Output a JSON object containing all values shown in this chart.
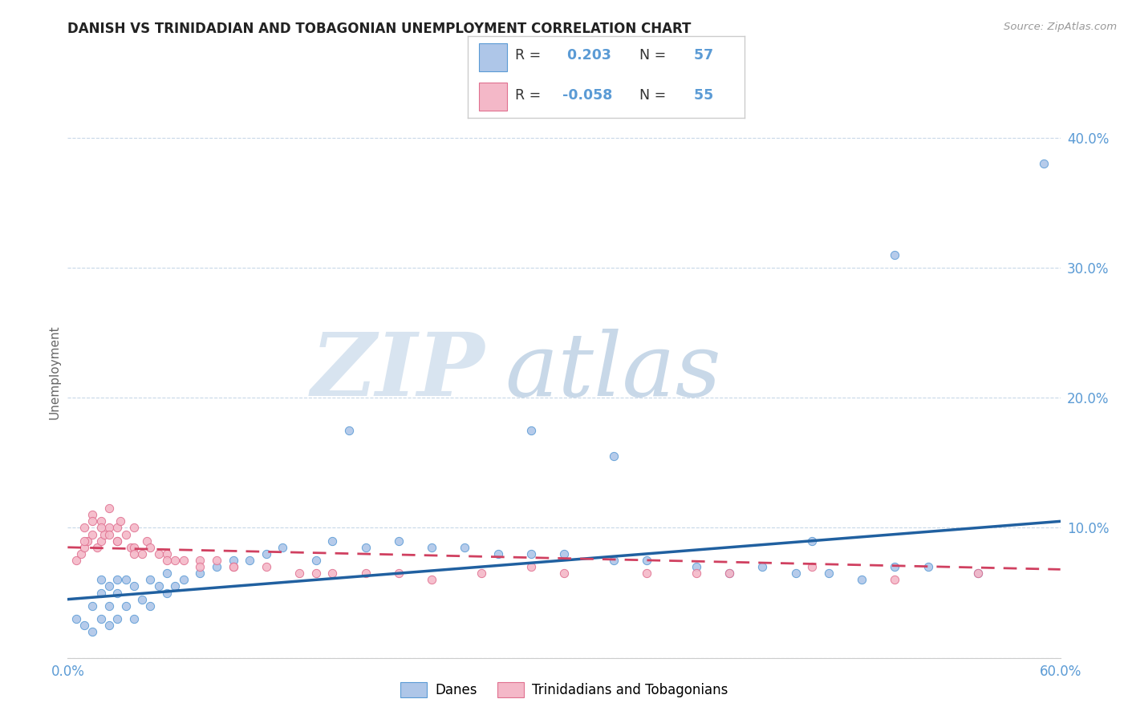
{
  "title": "DANISH VS TRINIDADIAN AND TOBAGONIAN UNEMPLOYMENT CORRELATION CHART",
  "source": "Source: ZipAtlas.com",
  "ylabel": "Unemployment",
  "yticks": [
    0.0,
    0.1,
    0.2,
    0.3,
    0.4
  ],
  "ytick_labels": [
    "",
    "10.0%",
    "20.0%",
    "30.0%",
    "40.0%"
  ],
  "xtick_labels": [
    "0.0%",
    "60.0%"
  ],
  "xlim": [
    0.0,
    0.6
  ],
  "ylim": [
    0.0,
    0.44
  ],
  "danes_R": 0.203,
  "danes_N": 57,
  "trini_R": -0.058,
  "trini_N": 55,
  "danes_color": "#aec6e8",
  "danes_edge_color": "#5b9bd5",
  "danes_line_color": "#2060a0",
  "trini_color": "#f4b8c8",
  "trini_edge_color": "#e07090",
  "trini_line_color": "#d04060",
  "legend_danes_label": "Danes",
  "legend_trini_label": "Trinidadians and Tobagonians",
  "watermark_zip": "ZIP",
  "watermark_atlas": "atlas",
  "background_color": "#ffffff",
  "grid_color": "#c8d8e8",
  "tick_color": "#5b9bd5",
  "legend_box_color": "#dddddd",
  "danes_scatter_x": [
    0.005,
    0.01,
    0.015,
    0.015,
    0.02,
    0.02,
    0.02,
    0.025,
    0.025,
    0.025,
    0.03,
    0.03,
    0.03,
    0.035,
    0.035,
    0.04,
    0.04,
    0.045,
    0.05,
    0.05,
    0.055,
    0.06,
    0.06,
    0.065,
    0.07,
    0.08,
    0.09,
    0.1,
    0.11,
    0.12,
    0.13,
    0.15,
    0.16,
    0.18,
    0.2,
    0.22,
    0.24,
    0.26,
    0.28,
    0.3,
    0.33,
    0.35,
    0.38,
    0.4,
    0.42,
    0.44,
    0.46,
    0.48,
    0.5,
    0.52,
    0.55,
    0.28,
    0.17,
    0.45,
    0.59,
    0.33,
    0.5
  ],
  "danes_scatter_y": [
    0.03,
    0.025,
    0.02,
    0.04,
    0.03,
    0.05,
    0.06,
    0.025,
    0.04,
    0.055,
    0.03,
    0.05,
    0.06,
    0.04,
    0.06,
    0.03,
    0.055,
    0.045,
    0.04,
    0.06,
    0.055,
    0.05,
    0.065,
    0.055,
    0.06,
    0.065,
    0.07,
    0.075,
    0.075,
    0.08,
    0.085,
    0.075,
    0.09,
    0.085,
    0.09,
    0.085,
    0.085,
    0.08,
    0.08,
    0.08,
    0.075,
    0.075,
    0.07,
    0.065,
    0.07,
    0.065,
    0.065,
    0.06,
    0.07,
    0.07,
    0.065,
    0.175,
    0.175,
    0.09,
    0.38,
    0.155,
    0.31
  ],
  "trini_scatter_x": [
    0.005,
    0.008,
    0.01,
    0.01,
    0.012,
    0.015,
    0.015,
    0.018,
    0.02,
    0.02,
    0.022,
    0.025,
    0.025,
    0.03,
    0.03,
    0.032,
    0.035,
    0.038,
    0.04,
    0.04,
    0.045,
    0.048,
    0.05,
    0.055,
    0.06,
    0.065,
    0.07,
    0.08,
    0.09,
    0.1,
    0.12,
    0.14,
    0.16,
    0.18,
    0.22,
    0.25,
    0.28,
    0.3,
    0.35,
    0.4,
    0.45,
    0.5,
    0.55,
    0.38,
    0.2,
    0.15,
    0.1,
    0.08,
    0.06,
    0.04,
    0.03,
    0.025,
    0.02,
    0.015,
    0.01
  ],
  "trini_scatter_y": [
    0.075,
    0.08,
    0.085,
    0.1,
    0.09,
    0.095,
    0.11,
    0.085,
    0.09,
    0.105,
    0.095,
    0.1,
    0.115,
    0.09,
    0.1,
    0.105,
    0.095,
    0.085,
    0.1,
    0.085,
    0.08,
    0.09,
    0.085,
    0.08,
    0.08,
    0.075,
    0.075,
    0.075,
    0.075,
    0.07,
    0.07,
    0.065,
    0.065,
    0.065,
    0.06,
    0.065,
    0.07,
    0.065,
    0.065,
    0.065,
    0.07,
    0.06,
    0.065,
    0.065,
    0.065,
    0.065,
    0.07,
    0.07,
    0.075,
    0.08,
    0.09,
    0.095,
    0.1,
    0.105,
    0.09
  ],
  "danes_line_x": [
    0.0,
    0.6
  ],
  "danes_line_y": [
    0.045,
    0.105
  ],
  "trini_line_x": [
    0.0,
    0.6
  ],
  "trini_line_y": [
    0.085,
    0.068
  ]
}
